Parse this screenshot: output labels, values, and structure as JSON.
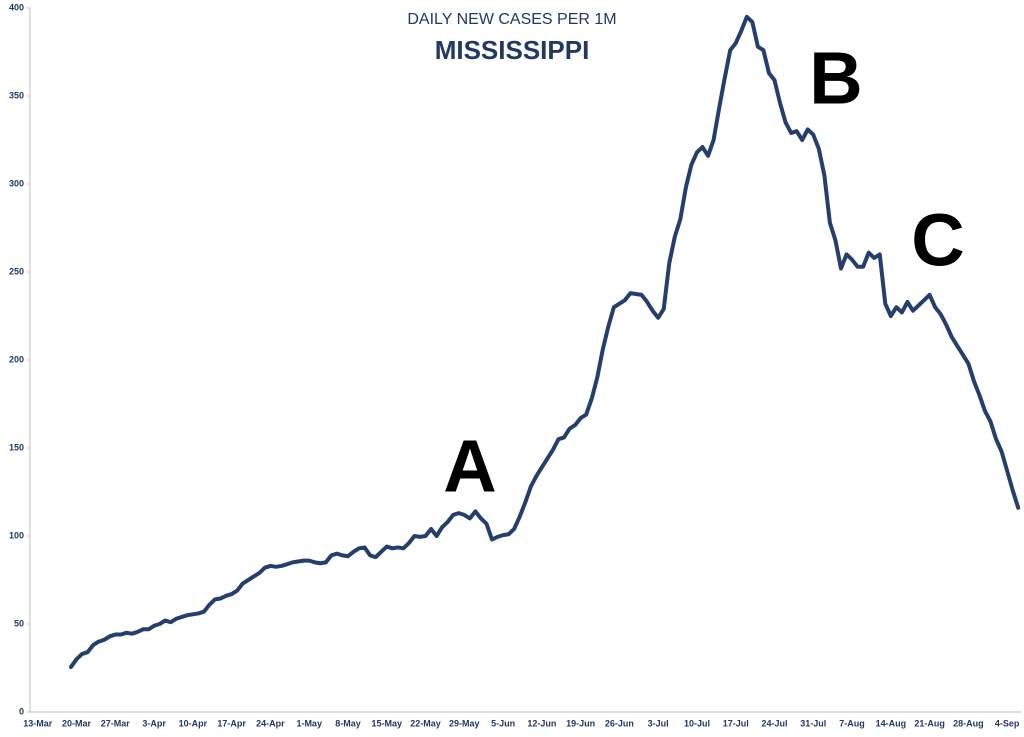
{
  "chart_data": {
    "type": "line",
    "title": "DAILY NEW CASES PER 1M",
    "subtitle": "MISSISSIPPI",
    "annotations": [
      "A",
      "B",
      "C"
    ],
    "categories": [
      "13-Mar",
      null,
      null,
      null,
      null,
      null,
      null,
      "20-Mar",
      null,
      null,
      null,
      null,
      null,
      null,
      "27-Mar",
      null,
      null,
      null,
      null,
      null,
      null,
      "3-Apr",
      null,
      null,
      null,
      null,
      null,
      null,
      "10-Apr",
      null,
      null,
      null,
      null,
      null,
      null,
      "17-Apr",
      null,
      null,
      null,
      null,
      null,
      null,
      "24-Apr",
      null,
      null,
      null,
      null,
      null,
      null,
      "1-May",
      null,
      null,
      null,
      null,
      null,
      null,
      "8-May",
      null,
      null,
      null,
      null,
      null,
      null,
      "15-May",
      null,
      null,
      null,
      null,
      null,
      null,
      "22-May",
      null,
      null,
      null,
      null,
      null,
      null,
      "29-May",
      null,
      null,
      null,
      null,
      null,
      null,
      "5-Jun",
      null,
      null,
      null,
      null,
      null,
      null,
      "12-Jun",
      null,
      null,
      null,
      null,
      null,
      null,
      "19-Jun",
      null,
      null,
      null,
      null,
      null,
      null,
      "26-Jun",
      null,
      null,
      null,
      null,
      null,
      null,
      "3-Jul",
      null,
      null,
      null,
      null,
      null,
      null,
      "10-Jul",
      null,
      null,
      null,
      null,
      null,
      null,
      "17-Jul",
      null,
      null,
      null,
      null,
      null,
      null,
      "24-Jul",
      null,
      null,
      null,
      null,
      null,
      null,
      "31-Jul",
      null,
      null,
      null,
      null,
      null,
      null,
      "7-Aug",
      null,
      null,
      null,
      null,
      null,
      null,
      "14-Aug",
      null,
      null,
      null,
      null,
      null,
      null,
      "21-Aug",
      null,
      null,
      null,
      null,
      null,
      null,
      "28-Aug",
      null,
      null,
      null,
      null,
      null,
      null,
      "4-Sep",
      null,
      null
    ],
    "series": [
      {
        "color": "#243f6e",
        "values": [
          null,
          null,
          null,
          null,
          null,
          null,
          25.6,
          30,
          33,
          34,
          38,
          40,
          41,
          43,
          44,
          44,
          45,
          44.5,
          45.5,
          47,
          47,
          49,
          50,
          52,
          51,
          53,
          54,
          55,
          55.5,
          56,
          57,
          61,
          64,
          64.5,
          66,
          67,
          69,
          73,
          75,
          77,
          79,
          82,
          83,
          82.5,
          83,
          84,
          85,
          85.5,
          86,
          86,
          85,
          84.5,
          85,
          89,
          90,
          89,
          88.5,
          91,
          93,
          93.5,
          89,
          88,
          91,
          94,
          93,
          93.5,
          93,
          96,
          100,
          99.5,
          100,
          104,
          100,
          105,
          108,
          112,
          113,
          112,
          110,
          114,
          110,
          107,
          98,
          99.5,
          100.5,
          101,
          104,
          111,
          119,
          128,
          134,
          139,
          144,
          149,
          155,
          156,
          161,
          163,
          167,
          169,
          178,
          190,
          206,
          219,
          230,
          232,
          234,
          238,
          237.5,
          237,
          233,
          228,
          224,
          229,
          255,
          270,
          280,
          298,
          311,
          318,
          321,
          316,
          325,
          343,
          360,
          376,
          380,
          387,
          395,
          392,
          378,
          376,
          363,
          359,
          346,
          335,
          329,
          330,
          325,
          331,
          328,
          320,
          305,
          278,
          268,
          252,
          260,
          257,
          253,
          253,
          261,
          258,
          260,
          232,
          225,
          230,
          227,
          233,
          228,
          231,
          234,
          237,
          230,
          226,
          220,
          213,
          208,
          203,
          198,
          188,
          180,
          171,
          165,
          155,
          148,
          137,
          126,
          116
        ]
      }
    ],
    "ylim": [
      0,
      400
    ],
    "yticks": [
      0,
      50,
      100,
      150,
      200,
      250,
      300,
      350,
      400
    ]
  }
}
